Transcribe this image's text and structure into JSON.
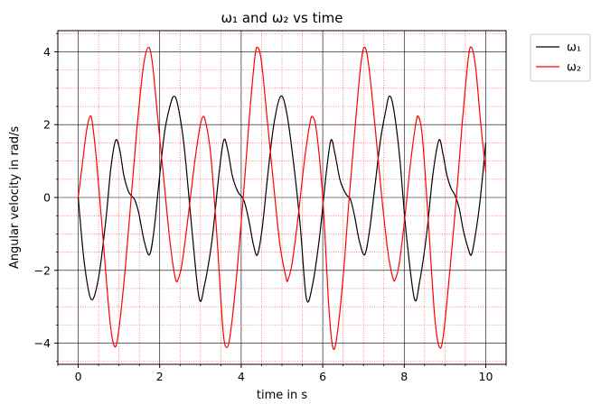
{
  "chart_data": {
    "type": "line",
    "title": "ω₁ and ω₂ vs time",
    "xlabel": "time in s",
    "ylabel": "Angular velocity in rad/s",
    "xlim": [
      -0.5,
      10.5
    ],
    "ylim": [
      -4.58,
      4.58
    ],
    "x_ticks": [
      0,
      2,
      4,
      6,
      8,
      10
    ],
    "y_ticks": [
      -4,
      -2,
      0,
      2,
      4
    ],
    "major_grid": true,
    "minor_grid": true,
    "major_grid_color": "#000000",
    "minor_grid_color": "#ff0000",
    "legend_position": "outside-top-right",
    "series": [
      {
        "name": "ω₁",
        "color": "#000000",
        "points": [
          [
            0.0,
            0.0
          ],
          [
            0.15,
            -1.8
          ],
          [
            0.32,
            -2.8
          ],
          [
            0.5,
            -2.2
          ],
          [
            0.68,
            -0.6
          ],
          [
            0.8,
            0.8
          ],
          [
            0.92,
            1.57
          ],
          [
            1.02,
            1.3
          ],
          [
            1.12,
            0.6
          ],
          [
            1.22,
            0.2
          ],
          [
            1.3,
            0.05
          ],
          [
            1.38,
            -0.05
          ],
          [
            1.48,
            -0.4
          ],
          [
            1.62,
            -1.2
          ],
          [
            1.75,
            -1.57
          ],
          [
            1.86,
            -0.9
          ],
          [
            1.98,
            0.4
          ],
          [
            2.12,
            1.8
          ],
          [
            2.25,
            2.5
          ],
          [
            2.35,
            2.78
          ],
          [
            2.45,
            2.5
          ],
          [
            2.6,
            1.4
          ],
          [
            2.8,
            -1.0
          ],
          [
            2.97,
            -2.78
          ],
          [
            3.1,
            -2.4
          ],
          [
            3.28,
            -1.2
          ],
          [
            3.45,
            0.6
          ],
          [
            3.57,
            1.57
          ],
          [
            3.67,
            1.3
          ],
          [
            3.78,
            0.6
          ],
          [
            3.88,
            0.25
          ],
          [
            3.95,
            0.1
          ],
          [
            4.03,
            0.0
          ],
          [
            4.1,
            -0.2
          ],
          [
            4.2,
            -0.7
          ],
          [
            4.3,
            -1.3
          ],
          [
            4.4,
            -1.57
          ],
          [
            4.52,
            -0.8
          ],
          [
            4.65,
            0.6
          ],
          [
            4.8,
            2.0
          ],
          [
            4.97,
            2.78
          ],
          [
            5.12,
            2.3
          ],
          [
            5.3,
            0.8
          ],
          [
            5.45,
            -0.8
          ],
          [
            5.6,
            -2.78
          ],
          [
            5.75,
            -2.4
          ],
          [
            5.92,
            -1.1
          ],
          [
            6.08,
            0.6
          ],
          [
            6.2,
            1.57
          ],
          [
            6.3,
            1.2
          ],
          [
            6.42,
            0.5
          ],
          [
            6.52,
            0.2
          ],
          [
            6.6,
            0.05
          ],
          [
            6.68,
            -0.05
          ],
          [
            6.78,
            -0.5
          ],
          [
            6.9,
            -1.2
          ],
          [
            7.03,
            -1.57
          ],
          [
            7.15,
            -0.9
          ],
          [
            7.28,
            0.3
          ],
          [
            7.42,
            1.6
          ],
          [
            7.55,
            2.4
          ],
          [
            7.63,
            2.78
          ],
          [
            7.73,
            2.5
          ],
          [
            7.88,
            1.2
          ],
          [
            8.05,
            -1.0
          ],
          [
            8.25,
            -2.78
          ],
          [
            8.38,
            -2.3
          ],
          [
            8.55,
            -1.0
          ],
          [
            8.7,
            0.6
          ],
          [
            8.85,
            1.57
          ],
          [
            8.95,
            1.2
          ],
          [
            9.05,
            0.6
          ],
          [
            9.15,
            0.25
          ],
          [
            9.25,
            0.05
          ],
          [
            9.35,
            -0.3
          ],
          [
            9.45,
            -0.9
          ],
          [
            9.57,
            -1.4
          ],
          [
            9.65,
            -1.57
          ],
          [
            9.75,
            -1.0
          ],
          [
            9.85,
            -0.2
          ],
          [
            9.95,
            0.9
          ],
          [
            10.0,
            1.5
          ]
        ]
      },
      {
        "name": "ω₂",
        "color": "#ff0000",
        "points": [
          [
            0.0,
            0.0
          ],
          [
            0.1,
            0.9
          ],
          [
            0.2,
            1.8
          ],
          [
            0.28,
            2.2
          ],
          [
            0.34,
            2.1
          ],
          [
            0.45,
            1.0
          ],
          [
            0.6,
            -1.0
          ],
          [
            0.78,
            -3.4
          ],
          [
            0.9,
            -4.1
          ],
          [
            1.0,
            -3.6
          ],
          [
            1.15,
            -2.0
          ],
          [
            1.3,
            0.0
          ],
          [
            1.45,
            2.0
          ],
          [
            1.6,
            3.6
          ],
          [
            1.72,
            4.12
          ],
          [
            1.82,
            3.7
          ],
          [
            1.95,
            2.2
          ],
          [
            2.1,
            0.5
          ],
          [
            2.25,
            -1.2
          ],
          [
            2.38,
            -2.2
          ],
          [
            2.45,
            -2.25
          ],
          [
            2.55,
            -1.8
          ],
          [
            2.7,
            -0.5
          ],
          [
            2.85,
            0.9
          ],
          [
            2.98,
            1.9
          ],
          [
            3.05,
            2.2
          ],
          [
            3.12,
            2.1
          ],
          [
            3.25,
            1.2
          ],
          [
            3.4,
            -1.0
          ],
          [
            3.55,
            -3.6
          ],
          [
            3.65,
            -4.12
          ],
          [
            3.75,
            -3.6
          ],
          [
            3.9,
            -2.0
          ],
          [
            4.05,
            0.0
          ],
          [
            4.2,
            2.2
          ],
          [
            4.33,
            3.8
          ],
          [
            4.4,
            4.12
          ],
          [
            4.5,
            3.7
          ],
          [
            4.65,
            2.0
          ],
          [
            4.8,
            0.3
          ],
          [
            4.95,
            -1.3
          ],
          [
            5.1,
            -2.2
          ],
          [
            5.15,
            -2.25
          ],
          [
            5.25,
            -1.8
          ],
          [
            5.4,
            -0.5
          ],
          [
            5.55,
            1.0
          ],
          [
            5.68,
            2.0
          ],
          [
            5.75,
            2.22
          ],
          [
            5.85,
            1.8
          ],
          [
            6.0,
            0.0
          ],
          [
            6.15,
            -3.0
          ],
          [
            6.25,
            -4.12
          ],
          [
            6.35,
            -3.8
          ],
          [
            6.5,
            -2.2
          ],
          [
            6.65,
            0.0
          ],
          [
            6.8,
            2.0
          ],
          [
            6.93,
            3.6
          ],
          [
            7.02,
            4.12
          ],
          [
            7.12,
            3.7
          ],
          [
            7.28,
            2.0
          ],
          [
            7.45,
            0.0
          ],
          [
            7.6,
            -1.5
          ],
          [
            7.72,
            -2.2
          ],
          [
            7.78,
            -2.25
          ],
          [
            7.88,
            -1.8
          ],
          [
            8.02,
            -0.5
          ],
          [
            8.15,
            0.9
          ],
          [
            8.28,
            2.0
          ],
          [
            8.35,
            2.22
          ],
          [
            8.45,
            1.6
          ],
          [
            8.6,
            -0.8
          ],
          [
            8.75,
            -3.3
          ],
          [
            8.87,
            -4.12
          ],
          [
            8.97,
            -3.7
          ],
          [
            9.12,
            -2.0
          ],
          [
            9.28,
            0.0
          ],
          [
            9.42,
            2.0
          ],
          [
            9.57,
            3.8
          ],
          [
            9.65,
            4.12
          ],
          [
            9.75,
            3.6
          ],
          [
            9.88,
            2.0
          ],
          [
            10.0,
            0.7
          ]
        ]
      }
    ]
  }
}
